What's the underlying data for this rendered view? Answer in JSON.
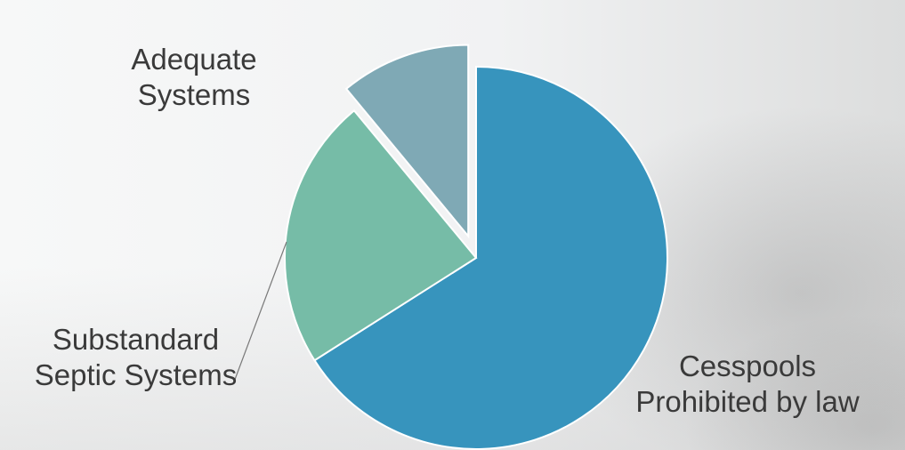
{
  "chart_data": {
    "type": "pie",
    "slices": [
      {
        "label_lines": [
          "Cesspools",
          "Prohibited by law"
        ],
        "value": 66,
        "color": "#3794bd"
      },
      {
        "label_lines": [
          "Substandard",
          "Septic Systems"
        ],
        "value": 23,
        "color": "#76bca7"
      },
      {
        "label_lines": [
          "Adequate",
          "Systems"
        ],
        "value": 11,
        "color": "#7fa9b5",
        "exploded": true
      }
    ],
    "legend": "none",
    "data_labels": "outside"
  }
}
